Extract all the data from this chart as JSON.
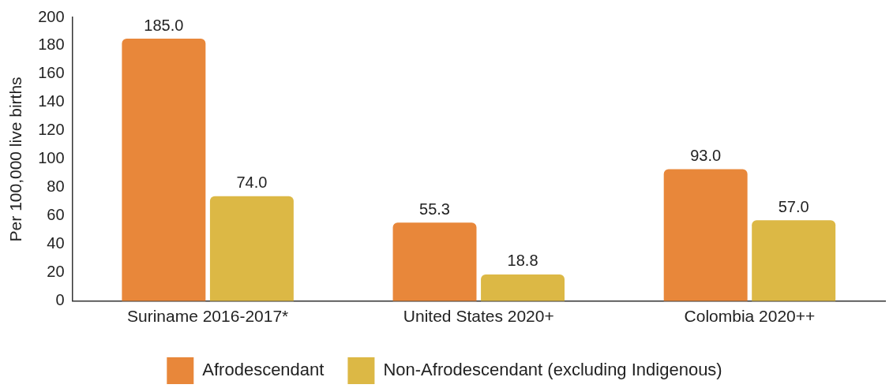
{
  "chart_data": {
    "type": "bar",
    "ylabel": "Per 100,000 live births",
    "categories": [
      "Suriname 2016-2017*",
      "United States 2020+",
      "Colombia 2020++"
    ],
    "series": [
      {
        "name": "Afrodescendant",
        "color": "#e8873a",
        "values": [
          185.0,
          55.3,
          93.0
        ],
        "value_labels": [
          "185.0",
          "55.3",
          "93.0"
        ]
      },
      {
        "name": "Non-Afrodescendant (excluding Indigenous)",
        "color": "#dcb845",
        "values": [
          74.0,
          18.8,
          57.0
        ],
        "value_labels": [
          "74.0",
          "18.8",
          "57.0"
        ]
      }
    ],
    "ylim": [
      0,
      200
    ],
    "yticks": [
      0,
      20,
      40,
      60,
      80,
      100,
      120,
      140,
      160,
      180,
      200
    ],
    "grid": false,
    "legend": "bottom"
  }
}
